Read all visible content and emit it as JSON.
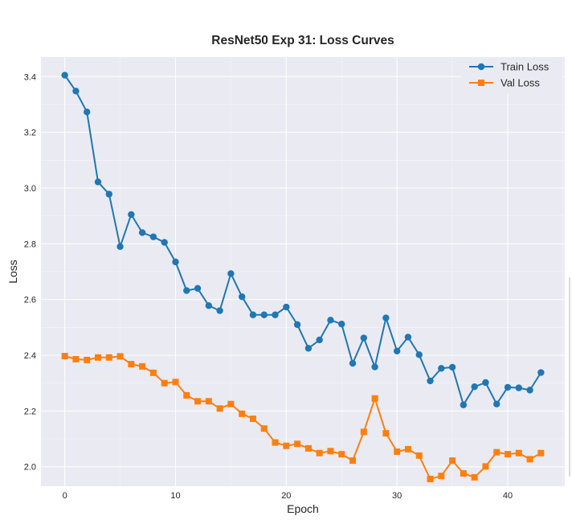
{
  "chart_data": {
    "type": "line",
    "title": "ResNet50 Exp 31: Loss Curves",
    "xlabel": "Epoch",
    "ylabel": "Loss",
    "xlim": [
      -2.15,
      45.15
    ],
    "ylim": [
      1.93,
      3.47
    ],
    "xticks": [
      0,
      10,
      20,
      30,
      40
    ],
    "yticks": [
      2.0,
      2.2,
      2.4,
      2.6,
      2.8,
      3.0,
      3.2,
      3.4
    ],
    "grid": true,
    "legend_position": "upper right",
    "x": [
      0,
      1,
      2,
      3,
      4,
      5,
      6,
      7,
      8,
      9,
      10,
      11,
      12,
      13,
      14,
      15,
      16,
      17,
      18,
      19,
      20,
      21,
      22,
      23,
      24,
      25,
      26,
      27,
      28,
      29,
      30,
      31,
      32,
      33,
      34,
      35,
      36,
      37,
      38,
      39,
      40,
      41,
      42,
      43
    ],
    "series": [
      {
        "name": "Train Loss",
        "color": "#1f77b4",
        "marker": "circle",
        "values": [
          3.405,
          3.348,
          3.273,
          3.022,
          2.978,
          2.79,
          2.905,
          2.84,
          2.825,
          2.805,
          2.735,
          2.632,
          2.64,
          2.578,
          2.56,
          2.693,
          2.61,
          2.545,
          2.545,
          2.545,
          2.573,
          2.51,
          2.425,
          2.455,
          2.526,
          2.512,
          2.371,
          2.462,
          2.358,
          2.534,
          2.415,
          2.465,
          2.402,
          2.308,
          2.353,
          2.357,
          2.222,
          2.287,
          2.302,
          2.225,
          2.285,
          2.283,
          2.275,
          2.338
        ]
      },
      {
        "name": "Val Loss",
        "color": "#ff7f0e",
        "marker": "square",
        "values": [
          2.397,
          2.386,
          2.383,
          2.392,
          2.392,
          2.396,
          2.368,
          2.36,
          2.337,
          2.3,
          2.304,
          2.256,
          2.235,
          2.235,
          2.209,
          2.225,
          2.19,
          2.172,
          2.137,
          2.087,
          2.075,
          2.082,
          2.066,
          2.049,
          2.056,
          2.045,
          2.022,
          2.125,
          2.245,
          2.12,
          2.054,
          2.063,
          2.04,
          1.956,
          1.967,
          2.022,
          1.976,
          1.962,
          2.001,
          2.052,
          2.045,
          2.049,
          2.027,
          2.049
        ]
      }
    ]
  }
}
